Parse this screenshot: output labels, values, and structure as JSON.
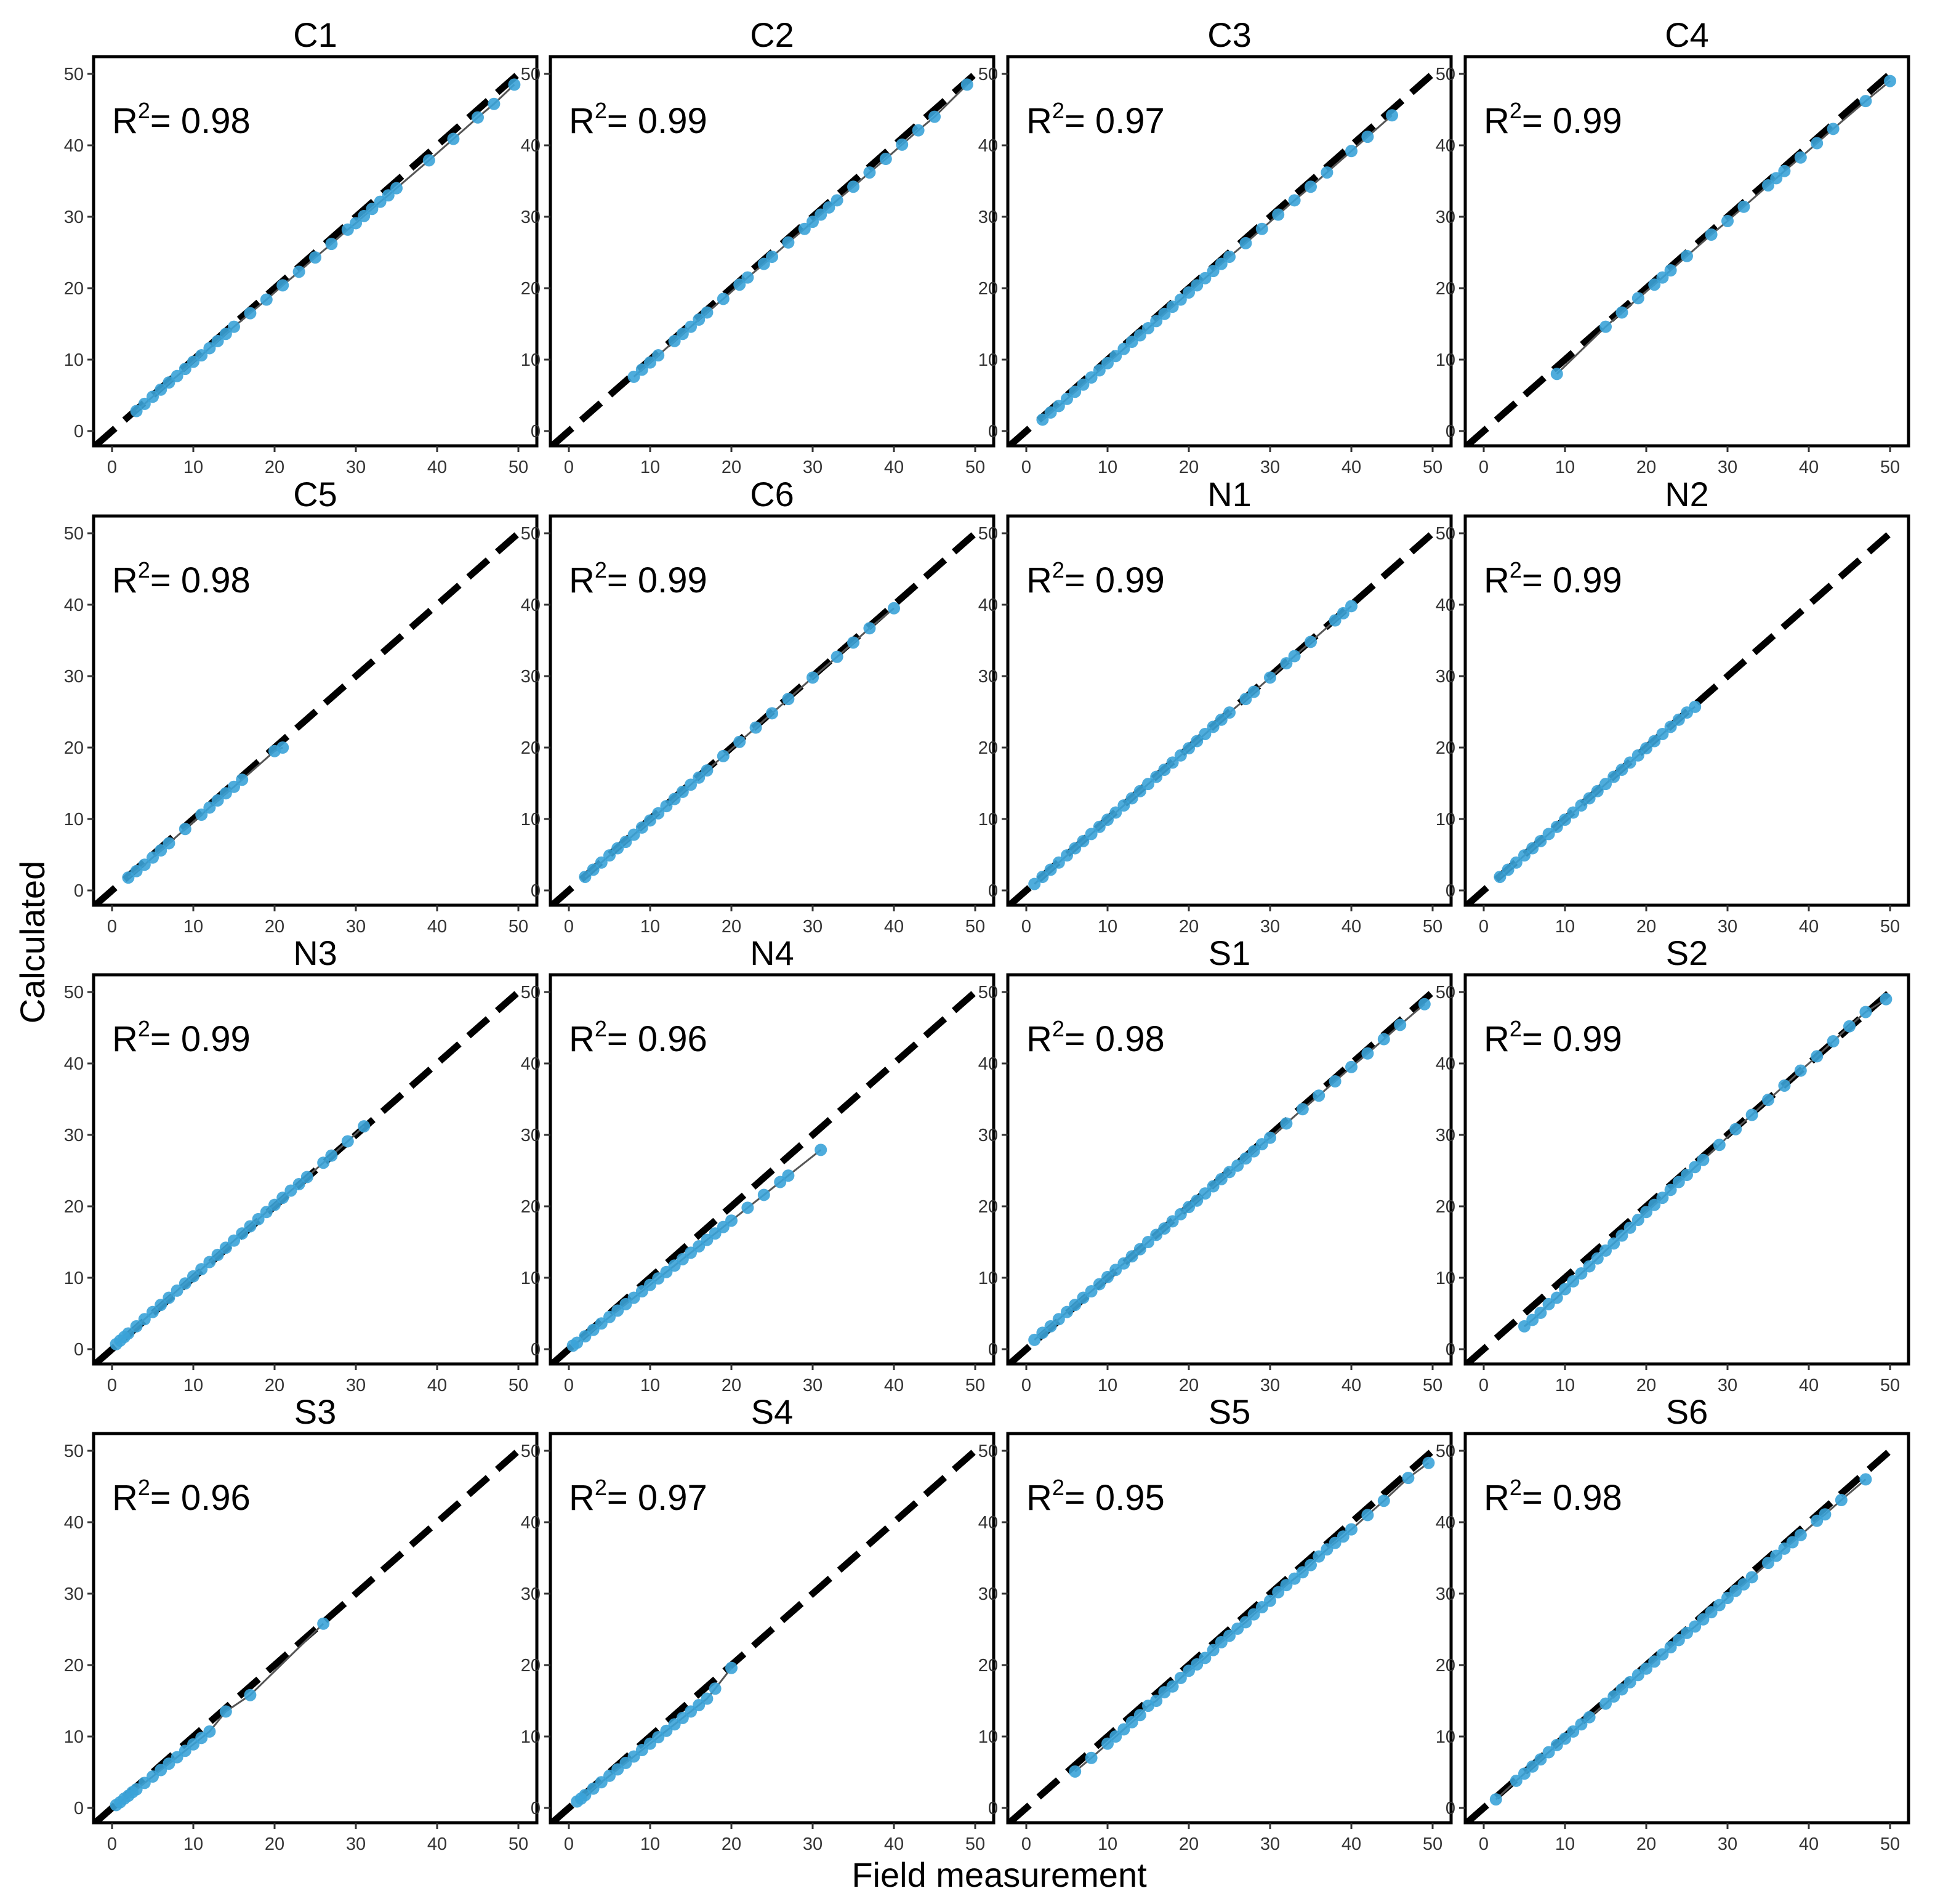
{
  "figure": {
    "xlabel": "Field measurement",
    "ylabel": "Calculated"
  },
  "colors": {
    "points": "#3ba3d8",
    "fit_line": "#555555",
    "identity_line": "#000000",
    "frame": "#000000"
  },
  "chart_data": [
    {
      "type": "scatter",
      "title": "C1",
      "r2_label": "R",
      "r2_sup": "2",
      "r2_value": "= 0.98",
      "xlim": [
        0,
        50
      ],
      "ylim": [
        0,
        50
      ],
      "xticks": [
        "0",
        "10",
        "20",
        "30",
        "40",
        "50"
      ],
      "yticks": [
        "0",
        "10",
        "20",
        "30",
        "40",
        "50"
      ],
      "identity_line": true,
      "x": [
        3,
        4,
        5,
        6,
        7,
        8,
        9,
        10,
        11,
        12,
        13,
        14,
        15,
        17,
        19,
        21,
        23,
        25,
        27,
        29,
        30,
        31,
        32,
        33,
        34,
        35,
        39,
        42,
        45,
        47,
        49.5
      ],
      "y": [
        2.8,
        3.8,
        4.8,
        5.8,
        6.8,
        7.7,
        8.7,
        9.7,
        10.6,
        11.6,
        12.6,
        13.6,
        14.6,
        16.5,
        18.4,
        20.4,
        22.3,
        24.3,
        26.2,
        28.2,
        29.1,
        30.1,
        31.1,
        32.1,
        33,
        34,
        37.9,
        40.9,
        43.9,
        45.8,
        48.5
      ]
    },
    {
      "type": "scatter",
      "title": "C2",
      "r2_label": "R",
      "r2_sup": "2",
      "r2_value": "= 0.99",
      "xlim": [
        0,
        50
      ],
      "ylim": [
        0,
        50
      ],
      "xticks": [
        "0",
        "10",
        "20",
        "30",
        "40",
        "50"
      ],
      "yticks": [
        "0",
        "10",
        "20",
        "30",
        "40",
        "50"
      ],
      "identity_line": true,
      "x": [
        8,
        9,
        10,
        11,
        13,
        14,
        15,
        16,
        17,
        19,
        21,
        22,
        24,
        25,
        27,
        29,
        30,
        31,
        32,
        33,
        35,
        37,
        39,
        41,
        43,
        45,
        49
      ],
      "y": [
        7.6,
        8.6,
        9.6,
        10.6,
        12.6,
        13.6,
        14.6,
        15.6,
        16.6,
        18.5,
        20.5,
        21.5,
        23.4,
        24.4,
        26.4,
        28.3,
        29.3,
        30.3,
        31.3,
        32.3,
        34.2,
        36.2,
        38.1,
        40.1,
        42.1,
        44,
        48.5
      ]
    },
    {
      "type": "scatter",
      "title": "C3",
      "r2_label": "R",
      "r2_sup": "2",
      "r2_value": "= 0.97",
      "xlim": [
        0,
        50
      ],
      "ylim": [
        0,
        50
      ],
      "xticks": [
        "0",
        "10",
        "20",
        "30",
        "40",
        "50"
      ],
      "yticks": [
        "0",
        "10",
        "20",
        "30",
        "40",
        "50"
      ],
      "identity_line": true,
      "x": [
        2,
        3,
        4,
        5,
        6,
        7,
        8,
        9,
        10,
        11,
        12,
        13,
        14,
        15,
        16,
        17,
        18,
        19,
        20,
        21,
        22,
        23,
        24,
        25,
        27,
        29,
        31,
        33,
        35,
        37,
        40,
        42,
        45
      ],
      "y": [
        1.6,
        2.6,
        3.5,
        4.5,
        5.5,
        6.5,
        7.5,
        8.5,
        9.5,
        10.5,
        11.5,
        12.5,
        13.4,
        14.4,
        15.4,
        16.4,
        17.4,
        18.4,
        19.4,
        20.4,
        21.4,
        22.4,
        23.4,
        24.4,
        26.3,
        28.3,
        30.3,
        32.3,
        34.2,
        36.2,
        39.2,
        41.2,
        44.2
      ]
    },
    {
      "type": "scatter",
      "title": "C4",
      "r2_label": "R",
      "r2_sup": "2",
      "r2_value": "= 0.99",
      "xlim": [
        0,
        50
      ],
      "ylim": [
        0,
        50
      ],
      "xticks": [
        "0",
        "10",
        "20",
        "30",
        "40",
        "50"
      ],
      "yticks": [
        "0",
        "10",
        "20",
        "30",
        "40",
        "50"
      ],
      "identity_line": true,
      "x": [
        9,
        15,
        17,
        19,
        21,
        22,
        23,
        25,
        28,
        30,
        32,
        35,
        36,
        37,
        39,
        41,
        43,
        47,
        50
      ],
      "y": [
        8,
        14.6,
        16.6,
        18.6,
        20.5,
        21.5,
        22.5,
        24.5,
        27.5,
        29.4,
        31.4,
        34.4,
        35.4,
        36.4,
        38.3,
        40.3,
        42.3,
        46.2,
        49
      ]
    },
    {
      "type": "scatter",
      "title": "C5",
      "r2_label": "R",
      "r2_sup": "2",
      "r2_value": "= 0.98",
      "xlim": [
        0,
        50
      ],
      "ylim": [
        0,
        50
      ],
      "xticks": [
        "0",
        "10",
        "20",
        "30",
        "40",
        "50"
      ],
      "yticks": [
        "0",
        "10",
        "20",
        "30",
        "40",
        "50"
      ],
      "identity_line": true,
      "x": [
        2,
        3,
        4,
        5,
        6,
        7,
        9,
        11,
        12,
        13,
        14,
        15,
        16,
        20,
        21
      ],
      "y": [
        1.8,
        2.7,
        3.6,
        4.6,
        5.6,
        6.6,
        8.6,
        10.6,
        11.6,
        12.6,
        13.6,
        14.5,
        15.5,
        19.5,
        20
      ]
    },
    {
      "type": "scatter",
      "title": "C6",
      "r2_label": "R",
      "r2_sup": "2",
      "r2_value": "= 0.99",
      "xlim": [
        0,
        50
      ],
      "ylim": [
        0,
        50
      ],
      "xticks": [
        "0",
        "10",
        "20",
        "30",
        "40",
        "50"
      ],
      "yticks": [
        "0",
        "10",
        "20",
        "30",
        "40",
        "50"
      ],
      "identity_line": true,
      "x": [
        2,
        3,
        4,
        5,
        6,
        7,
        8,
        9,
        10,
        11,
        12,
        13,
        14,
        15,
        16,
        17,
        19,
        21,
        23,
        25,
        27,
        30,
        33,
        35,
        37,
        40
      ],
      "y": [
        1.9,
        2.9,
        3.9,
        4.9,
        5.9,
        6.8,
        7.8,
        8.8,
        9.8,
        10.8,
        11.8,
        12.8,
        13.8,
        14.8,
        15.8,
        16.8,
        18.8,
        20.8,
        22.8,
        24.8,
        26.8,
        29.8,
        32.7,
        34.7,
        36.7,
        39.5
      ]
    },
    {
      "type": "scatter",
      "title": "N1",
      "r2_label": "R",
      "r2_sup": "2",
      "r2_value": "= 0.99",
      "xlim": [
        0,
        50
      ],
      "ylim": [
        0,
        50
      ],
      "xticks": [
        "0",
        "10",
        "20",
        "30",
        "40",
        "50"
      ],
      "yticks": [
        "0",
        "10",
        "20",
        "30",
        "40",
        "50"
      ],
      "identity_line": true,
      "x": [
        1,
        2,
        3,
        4,
        5,
        6,
        7,
        8,
        9,
        10,
        11,
        12,
        13,
        14,
        15,
        16,
        17,
        18,
        19,
        20,
        21,
        22,
        23,
        24,
        25,
        27,
        28,
        30,
        32,
        33,
        35,
        38,
        39,
        40
      ],
      "y": [
        0.9,
        1.9,
        2.9,
        3.9,
        4.9,
        5.9,
        6.9,
        7.9,
        8.9,
        9.9,
        10.9,
        11.9,
        12.9,
        13.9,
        14.9,
        15.9,
        16.9,
        17.9,
        18.9,
        19.9,
        20.9,
        21.9,
        22.9,
        23.9,
        24.9,
        26.8,
        27.8,
        29.8,
        31.8,
        32.8,
        34.8,
        37.8,
        38.8,
        39.8
      ]
    },
    {
      "type": "scatter",
      "title": "N2",
      "r2_label": "R",
      "r2_sup": "2",
      "r2_value": "= 0.99",
      "xlim": [
        0,
        50
      ],
      "ylim": [
        0,
        50
      ],
      "xticks": [
        "0",
        "10",
        "20",
        "30",
        "40",
        "50"
      ],
      "yticks": [
        "0",
        "10",
        "20",
        "30",
        "40",
        "50"
      ],
      "identity_line": true,
      "x": [
        2,
        3,
        4,
        5,
        6,
        7,
        8,
        9,
        10,
        11,
        12,
        13,
        14,
        15,
        16,
        17,
        18,
        19,
        20,
        21,
        22,
        23,
        24,
        25,
        26
      ],
      "y": [
        1.9,
        2.9,
        3.9,
        4.9,
        5.9,
        6.9,
        7.9,
        8.9,
        9.9,
        10.9,
        11.9,
        12.9,
        13.9,
        14.9,
        15.9,
        16.9,
        17.9,
        18.9,
        19.9,
        20.9,
        21.9,
        22.9,
        23.9,
        24.9,
        25.7
      ]
    },
    {
      "type": "scatter",
      "title": "N3",
      "r2_label": "R",
      "r2_sup": "2",
      "r2_value": "= 0.99",
      "xlim": [
        0,
        50
      ],
      "ylim": [
        0,
        50
      ],
      "xticks": [
        "0",
        "10",
        "20",
        "30",
        "40",
        "50"
      ],
      "yticks": [
        "0",
        "10",
        "20",
        "30",
        "40",
        "50"
      ],
      "identity_line": true,
      "x": [
        0.5,
        1,
        1.5,
        2,
        3,
        4,
        5,
        6,
        7,
        8,
        9,
        10,
        11,
        12,
        13,
        14,
        15,
        16,
        17,
        18,
        19,
        20,
        21,
        22,
        23,
        24,
        26,
        27,
        29,
        31
      ],
      "y": [
        0.7,
        1.2,
        1.7,
        2.2,
        3.2,
        4.2,
        5.2,
        6.2,
        7.2,
        8.2,
        9.2,
        10.2,
        11.2,
        12.2,
        13.2,
        14.2,
        15.2,
        16.2,
        17.2,
        18.2,
        19.2,
        20.2,
        21.2,
        22.2,
        23.1,
        24.1,
        26.1,
        27.1,
        29.1,
        31.2
      ]
    },
    {
      "type": "scatter",
      "title": "N4",
      "r2_label": "R",
      "r2_sup": "2",
      "r2_value": "= 0.96",
      "xlim": [
        0,
        50
      ],
      "ylim": [
        0,
        50
      ],
      "xticks": [
        "0",
        "10",
        "20",
        "30",
        "40",
        "50"
      ],
      "yticks": [
        "0",
        "10",
        "20",
        "30",
        "40",
        "50"
      ],
      "identity_line": true,
      "x": [
        0.5,
        1,
        2,
        3,
        4,
        5,
        6,
        7,
        8,
        9,
        10,
        11,
        12,
        13,
        14,
        15,
        16,
        17,
        18,
        19,
        20,
        22,
        24,
        26,
        27,
        31
      ],
      "y": [
        0.5,
        0.9,
        1.8,
        2.7,
        3.6,
        4.5,
        5.4,
        6.3,
        7.2,
        8.1,
        9,
        9.9,
        10.8,
        11.7,
        12.6,
        13.5,
        14.4,
        15.3,
        16.2,
        17.1,
        18,
        19.8,
        21.6,
        23.4,
        24.3,
        27.9
      ]
    },
    {
      "type": "scatter",
      "title": "S1",
      "r2_label": "R",
      "r2_sup": "2",
      "r2_value": "= 0.98",
      "xlim": [
        0,
        50
      ],
      "ylim": [
        0,
        50
      ],
      "xticks": [
        "0",
        "10",
        "20",
        "30",
        "40",
        "50"
      ],
      "yticks": [
        "0",
        "10",
        "20",
        "30",
        "40",
        "50"
      ],
      "identity_line": true,
      "x": [
        1,
        2,
        3,
        4,
        5,
        6,
        7,
        8,
        9,
        10,
        11,
        12,
        13,
        14,
        15,
        16,
        17,
        18,
        19,
        20,
        21,
        22,
        23,
        24,
        25,
        26,
        27,
        28,
        29,
        30,
        32,
        34,
        36,
        38,
        40,
        42,
        44,
        46,
        49
      ],
      "y": [
        1.3,
        2.3,
        3.2,
        4.2,
        5.2,
        6.2,
        7.2,
        8.1,
        9.1,
        10.1,
        11.1,
        12,
        13,
        14,
        15,
        16,
        16.9,
        17.9,
        18.9,
        19.9,
        20.8,
        21.8,
        22.8,
        23.8,
        24.8,
        25.7,
        26.7,
        27.7,
        28.7,
        29.6,
        31.6,
        33.6,
        35.5,
        37.5,
        39.5,
        41.4,
        43.4,
        45.4,
        48.3
      ]
    },
    {
      "type": "scatter",
      "title": "S2",
      "r2_label": "R",
      "r2_sup": "2",
      "r2_value": "= 0.99",
      "xlim": [
        0,
        50
      ],
      "ylim": [
        0,
        50
      ],
      "xticks": [
        "0",
        "10",
        "20",
        "30",
        "40",
        "50"
      ],
      "yticks": [
        "0",
        "10",
        "20",
        "30",
        "40",
        "50"
      ],
      "identity_line": true,
      "x": [
        5,
        6,
        7,
        8,
        9,
        10,
        11,
        12,
        13,
        14,
        15,
        16,
        17,
        18,
        19,
        20,
        21,
        22,
        23,
        24,
        25,
        26,
        27,
        29,
        31,
        33,
        35,
        37,
        39,
        41,
        43,
        45,
        47,
        49.5
      ],
      "y": [
        3.2,
        4.1,
        5.1,
        6.3,
        7.2,
        8.4,
        9.5,
        10.6,
        11.6,
        12.7,
        13.8,
        14.8,
        15.9,
        17,
        18.1,
        19.2,
        20.2,
        21.2,
        22.3,
        23.4,
        24.4,
        25.5,
        26.5,
        28.6,
        30.8,
        32.8,
        34.9,
        36.9,
        39,
        41,
        43.1,
        45.2,
        47.2,
        49
      ]
    },
    {
      "type": "scatter",
      "title": "S3",
      "r2_label": "R",
      "r2_sup": "2",
      "r2_value": "= 0.96",
      "xlim": [
        0,
        50
      ],
      "ylim": [
        0,
        50
      ],
      "xticks": [
        "0",
        "10",
        "20",
        "30",
        "40",
        "50"
      ],
      "yticks": [
        "0",
        "10",
        "20",
        "30",
        "40",
        "50"
      ],
      "identity_line": true,
      "x": [
        0.5,
        1,
        1.5,
        2,
        2.5,
        3,
        4,
        5,
        6,
        7,
        8,
        9,
        10,
        11,
        12,
        14,
        17,
        26
      ],
      "y": [
        0.4,
        0.8,
        1.3,
        1.7,
        2.2,
        2.6,
        3.5,
        4.4,
        5.3,
        6.2,
        7.1,
        8,
        8.9,
        9.8,
        10.7,
        13.5,
        15.8,
        25.8
      ]
    },
    {
      "type": "scatter",
      "title": "S4",
      "r2_label": "R",
      "r2_sup": "2",
      "r2_value": "= 0.97",
      "xlim": [
        0,
        50
      ],
      "ylim": [
        0,
        50
      ],
      "xticks": [
        "0",
        "10",
        "20",
        "30",
        "40",
        "50"
      ],
      "yticks": [
        "0",
        "10",
        "20",
        "30",
        "40",
        "50"
      ],
      "identity_line": true,
      "x": [
        1,
        1.5,
        2,
        3,
        4,
        5,
        6,
        7,
        8,
        9,
        10,
        11,
        12,
        13,
        14,
        15,
        16,
        17,
        18,
        20
      ],
      "y": [
        0.9,
        1.3,
        1.8,
        2.7,
        3.6,
        4.5,
        5.4,
        6.3,
        7.2,
        8.1,
        9,
        9.9,
        10.8,
        11.7,
        12.6,
        13.5,
        14.4,
        15.3,
        16.7,
        19.6
      ]
    },
    {
      "type": "scatter",
      "title": "S5",
      "r2_label": "R",
      "r2_sup": "2",
      "r2_value": "= 0.95",
      "xlim": [
        0,
        50
      ],
      "ylim": [
        0,
        50
      ],
      "xticks": [
        "0",
        "10",
        "20",
        "30",
        "40",
        "50"
      ],
      "yticks": [
        "0",
        "10",
        "20",
        "30",
        "40",
        "50"
      ],
      "identity_line": true,
      "x": [
        6,
        8,
        10,
        11,
        12,
        13,
        14,
        15,
        16,
        17,
        18,
        19,
        20,
        21,
        22,
        23,
        24,
        25,
        26,
        27,
        28,
        29,
        30,
        31,
        32,
        33,
        34,
        35,
        36,
        37,
        38,
        39,
        40,
        42,
        44,
        47,
        49.5
      ],
      "y": [
        5.1,
        7,
        9,
        10,
        11,
        12,
        13,
        14.3,
        15,
        16.2,
        17,
        18.2,
        19.2,
        20.1,
        21,
        22.1,
        23.2,
        24.1,
        25.1,
        26,
        27.1,
        28.1,
        29,
        30.2,
        31.2,
        32.1,
        33,
        34,
        35.2,
        36.2,
        37.1,
        38,
        39,
        41,
        43,
        46.2,
        48.3
      ]
    },
    {
      "type": "scatter",
      "title": "S6",
      "r2_label": "R",
      "r2_sup": "2",
      "r2_value": "= 0.98",
      "xlim": [
        0,
        50
      ],
      "ylim": [
        0,
        50
      ],
      "xticks": [
        "0",
        "10",
        "20",
        "30",
        "40",
        "50"
      ],
      "yticks": [
        "0",
        "10",
        "20",
        "30",
        "40",
        "50"
      ],
      "identity_line": true,
      "x": [
        1.5,
        4,
        5,
        6,
        7,
        8,
        9,
        10,
        11,
        12,
        13,
        15,
        16,
        17,
        18,
        19,
        20,
        21,
        22,
        23,
        24,
        25,
        26,
        27,
        28,
        29,
        30,
        31,
        32,
        33,
        35,
        36,
        37,
        38,
        39,
        41,
        42,
        44,
        47
      ],
      "y": [
        1.2,
        3.8,
        4.8,
        5.8,
        6.8,
        7.8,
        8.8,
        9.7,
        10.7,
        11.7,
        12.7,
        14.6,
        15.6,
        16.6,
        17.6,
        18.6,
        19.5,
        20.5,
        21.5,
        22.5,
        23.5,
        24.5,
        25.4,
        26.4,
        27.4,
        28.4,
        29.4,
        30.4,
        31.3,
        32.3,
        34.3,
        35.3,
        36.3,
        37.2,
        38.2,
        40.2,
        41.1,
        43.1,
        46
      ]
    }
  ]
}
